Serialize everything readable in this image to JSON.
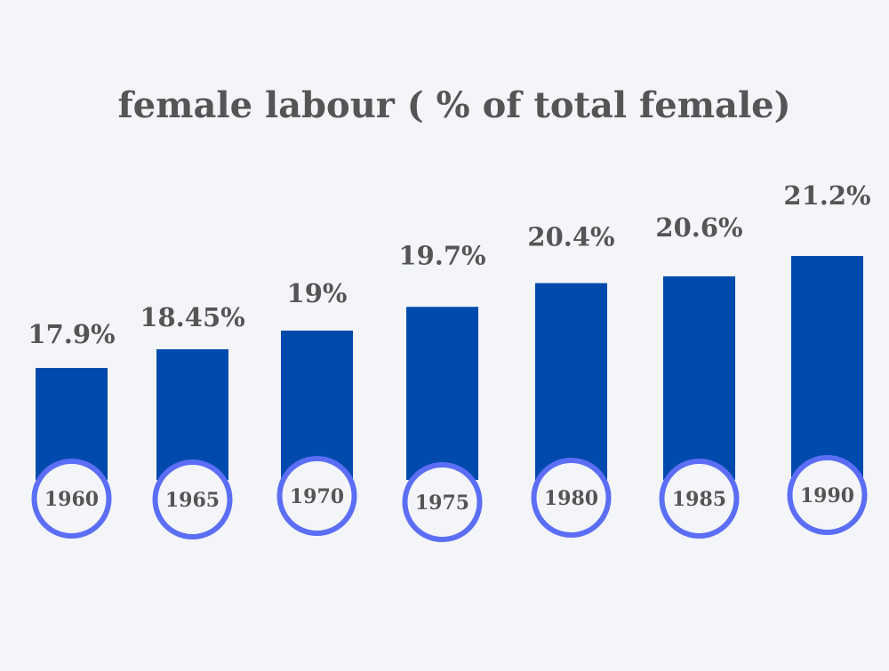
{
  "chart_data": {
    "type": "bar",
    "title": "female labour ( % of total female)",
    "xlabel": "",
    "ylabel": "",
    "categories": [
      "1960",
      "1965",
      "1970",
      "1975",
      "1980",
      "1985",
      "1990"
    ],
    "values": [
      17.9,
      18.45,
      19,
      19.7,
      20.4,
      20.6,
      21.2
    ],
    "value_labels": [
      "17.9%",
      "18.45%",
      "19%",
      "19.7%",
      "20.4%",
      "20.6%",
      "21.2%"
    ],
    "ylim": [
      14.6,
      21.2
    ],
    "grid": false,
    "colors": {
      "bar": "#004aad",
      "circle": "#5b6ef5",
      "text": "#555555",
      "background": "#f3f5f8"
    }
  }
}
